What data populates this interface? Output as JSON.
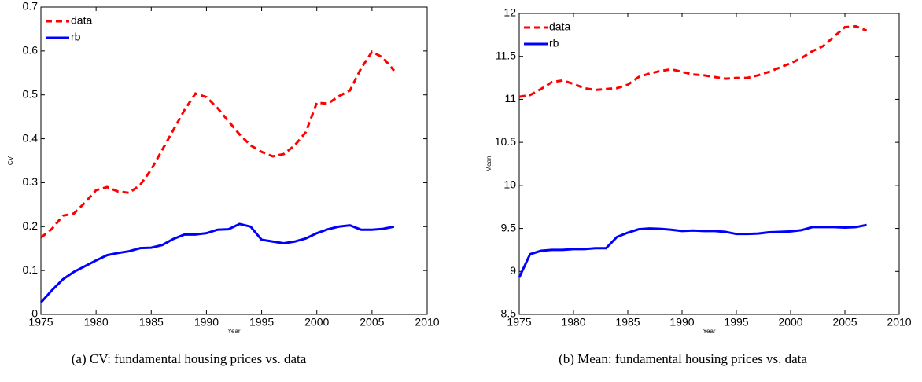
{
  "chart_data": [
    {
      "type": "line",
      "ylabel": "CV",
      "xlabel": "Year",
      "caption": "(a) CV: fundamental housing prices vs. data",
      "x": [
        1975,
        1976,
        1977,
        1978,
        1979,
        1980,
        1981,
        1982,
        1983,
        1984,
        1985,
        1986,
        1987,
        1988,
        1989,
        1990,
        1991,
        1992,
        1993,
        1994,
        1995,
        1996,
        1997,
        1998,
        1999,
        2000,
        2001,
        2002,
        2003,
        2004,
        2005,
        2006,
        2007
      ],
      "series": [
        {
          "name": "data",
          "color": "#ff0000",
          "linestyle": "dashed",
          "values": [
            0.175,
            0.195,
            0.225,
            0.23,
            0.255,
            0.283,
            0.29,
            0.28,
            0.277,
            0.295,
            0.33,
            0.375,
            0.42,
            0.465,
            0.503,
            0.495,
            0.47,
            0.44,
            0.41,
            0.385,
            0.37,
            0.36,
            0.365,
            0.385,
            0.415,
            0.482,
            0.48,
            0.497,
            0.51,
            0.56,
            0.598,
            0.585,
            0.555
          ]
        },
        {
          "name": "rb",
          "color": "#0000ff",
          "linestyle": "solid",
          "values": [
            0.027,
            0.055,
            0.08,
            0.097,
            0.11,
            0.123,
            0.135,
            0.14,
            0.144,
            0.151,
            0.152,
            0.158,
            0.172,
            0.182,
            0.182,
            0.185,
            0.193,
            0.194,
            0.206,
            0.2,
            0.17,
            0.166,
            0.162,
            0.166,
            0.173,
            0.185,
            0.194,
            0.2,
            0.203,
            0.193,
            0.193,
            0.195,
            0.2
          ]
        }
      ],
      "xlim": [
        1975,
        2010
      ],
      "xticks": [
        1975,
        1980,
        1985,
        1990,
        1995,
        2000,
        2005,
        2010
      ],
      "ylim": [
        0,
        0.7
      ],
      "yticks": [
        0,
        0.1,
        0.2,
        0.3,
        0.4,
        0.5,
        0.6,
        0.7
      ],
      "grid": false,
      "legend": "upper left"
    },
    {
      "type": "line",
      "ylabel": "Mean",
      "xlabel": "Year",
      "caption": "(b) Mean: fundamental housing prices vs. data",
      "x": [
        1975,
        1976,
        1977,
        1978,
        1979,
        1980,
        1981,
        1982,
        1983,
        1984,
        1985,
        1986,
        1987,
        1988,
        1989,
        1990,
        1991,
        1992,
        1993,
        1994,
        1995,
        1996,
        1997,
        1998,
        1999,
        2000,
        2001,
        2002,
        2003,
        2004,
        2005,
        2006,
        2007
      ],
      "series": [
        {
          "name": "data",
          "color": "#ff0000",
          "linestyle": "dashed",
          "values": [
            11.03,
            11.05,
            11.12,
            11.2,
            11.22,
            11.18,
            11.13,
            11.11,
            11.12,
            11.13,
            11.17,
            11.26,
            11.3,
            11.33,
            11.35,
            11.32,
            11.29,
            11.28,
            11.26,
            11.24,
            11.25,
            11.25,
            11.28,
            11.32,
            11.37,
            11.42,
            11.48,
            11.56,
            11.62,
            11.73,
            11.84,
            11.85,
            11.8
          ]
        },
        {
          "name": "rb",
          "color": "#0000ff",
          "linestyle": "solid",
          "values": [
            8.93,
            9.2,
            9.24,
            9.25,
            9.25,
            9.26,
            9.26,
            9.27,
            9.27,
            9.4,
            9.45,
            9.49,
            9.5,
            9.495,
            9.485,
            9.47,
            9.475,
            9.47,
            9.47,
            9.46,
            9.435,
            9.435,
            9.44,
            9.455,
            9.46,
            9.465,
            9.48,
            9.515,
            9.515,
            9.515,
            9.51,
            9.515,
            9.54
          ]
        }
      ],
      "xlim": [
        1975,
        2010
      ],
      "xticks": [
        1975,
        1980,
        1985,
        1990,
        1995,
        2000,
        2005,
        2010
      ],
      "ylim": [
        8.5,
        12
      ],
      "yticks": [
        8.5,
        9,
        9.5,
        10,
        10.5,
        11,
        11.5,
        12
      ],
      "grid": false,
      "legend": "upper left"
    }
  ]
}
